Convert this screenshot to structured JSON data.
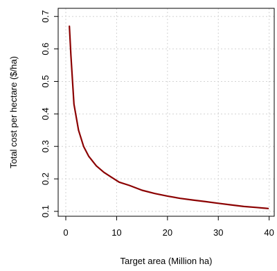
{
  "chart_data": {
    "type": "line",
    "title": "",
    "xlabel": "Target area (Million ha)",
    "ylabel": "Total cost per hectare ($/ha)",
    "xlim": [
      0,
      40
    ],
    "ylim": [
      0.1,
      0.7
    ],
    "x_ticks": [
      0,
      10,
      20,
      30,
      40
    ],
    "x_tick_labels": [
      "0",
      "10",
      "20",
      "30",
      "40"
    ],
    "y_ticks": [
      0.1,
      0.2,
      0.3,
      0.4,
      0.5,
      0.6,
      0.7
    ],
    "y_tick_labels": [
      "0.1",
      "0.2",
      "0.3",
      "0.4",
      "0.5",
      "0.6",
      "0.7"
    ],
    "grid": true,
    "series": [
      {
        "color": "#8b0000",
        "x": [
          0.7,
          1.0,
          1.6,
          2.5,
          3.5,
          4.5,
          6,
          7.5,
          9,
          10.5,
          12.5,
          15,
          17.5,
          20,
          22.5,
          25,
          27.5,
          30,
          32.5,
          35,
          37.5,
          39.8
        ],
        "y": [
          0.67,
          0.58,
          0.43,
          0.35,
          0.3,
          0.27,
          0.24,
          0.22,
          0.205,
          0.19,
          0.18,
          0.165,
          0.155,
          0.147,
          0.14,
          0.135,
          0.13,
          0.125,
          0.12,
          0.115,
          0.112,
          0.109
        ]
      }
    ]
  }
}
